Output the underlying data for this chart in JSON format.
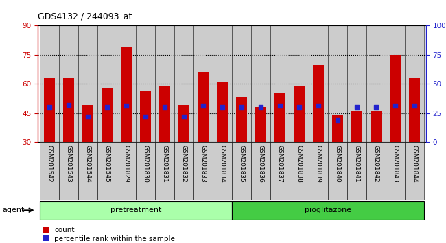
{
  "title": "GDS4132 / 244093_at",
  "samples": [
    "GSM201542",
    "GSM201543",
    "GSM201544",
    "GSM201545",
    "GSM201829",
    "GSM201830",
    "GSM201831",
    "GSM201832",
    "GSM201833",
    "GSM201834",
    "GSM201835",
    "GSM201836",
    "GSM201837",
    "GSM201838",
    "GSM201839",
    "GSM201840",
    "GSM201841",
    "GSM201842",
    "GSM201843",
    "GSM201844"
  ],
  "counts": [
    63,
    63,
    49,
    58,
    79,
    56,
    59,
    49,
    66,
    61,
    53,
    48,
    55,
    59,
    70,
    44,
    46,
    46,
    75,
    63
  ],
  "percentile_ranks": [
    30,
    32,
    22,
    30,
    31,
    22,
    30,
    22,
    31,
    30,
    30,
    30,
    31,
    30,
    31,
    19,
    30,
    30,
    31,
    31
  ],
  "bar_color": "#CC0000",
  "dot_color": "#2222CC",
  "ylim_left": [
    30,
    90
  ],
  "ylim_right": [
    0,
    100
  ],
  "yticks_left": [
    30,
    45,
    60,
    75,
    90
  ],
  "yticks_right": [
    0,
    25,
    50,
    75,
    100
  ],
  "grid_values": [
    45,
    60,
    75
  ],
  "pre_color": "#aaffaa",
  "pio_color": "#44cc44",
  "xtick_bg": "#cccccc",
  "legend_count": "count",
  "legend_percentile": "percentile rank within the sample"
}
